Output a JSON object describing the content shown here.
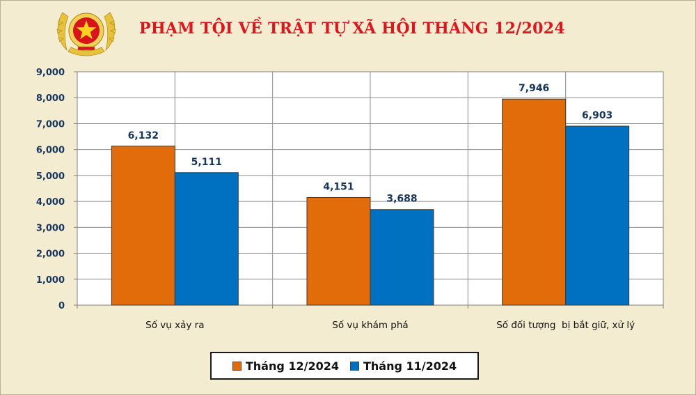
{
  "header": {
    "title": "PHẠM TỘI VỀ TRẬT TỰ XÃ HỘI THÁNG 12/2024"
  },
  "chart_data": {
    "type": "bar",
    "title": "PHẠM TỘI VỀ TRẬT TỰ XÃ HỘI THÁNG 12/2024",
    "categories": [
      "Số vụ xảy ra",
      "Số vụ khám phá",
      "Số đối tượng  bị bắt giữ, xử lý"
    ],
    "series": [
      {
        "name": "Tháng 12/2024",
        "values": [
          6132,
          4151,
          7946
        ],
        "color": "#e36c0a"
      },
      {
        "name": "Tháng 11/2024",
        "values": [
          5111,
          3688,
          6903
        ],
        "color": "#0070c0"
      }
    ],
    "value_labels": [
      [
        "6,132",
        "4,151",
        "7,946"
      ],
      [
        "5,111",
        "3,688",
        "6,903"
      ]
    ],
    "ylim": [
      0,
      9000
    ],
    "yticks": [
      "0",
      "1,000",
      "2,000",
      "3,000",
      "4,000",
      "5,000",
      "6,000",
      "7,000",
      "8,000",
      "9,000"
    ],
    "ytick_values": [
      0,
      1000,
      2000,
      3000,
      4000,
      5000,
      6000,
      7000,
      8000,
      9000
    ],
    "grid": true,
    "legend_position": "bottom",
    "plot_background": "#ffffff",
    "page_background": "#f3ecd0"
  }
}
